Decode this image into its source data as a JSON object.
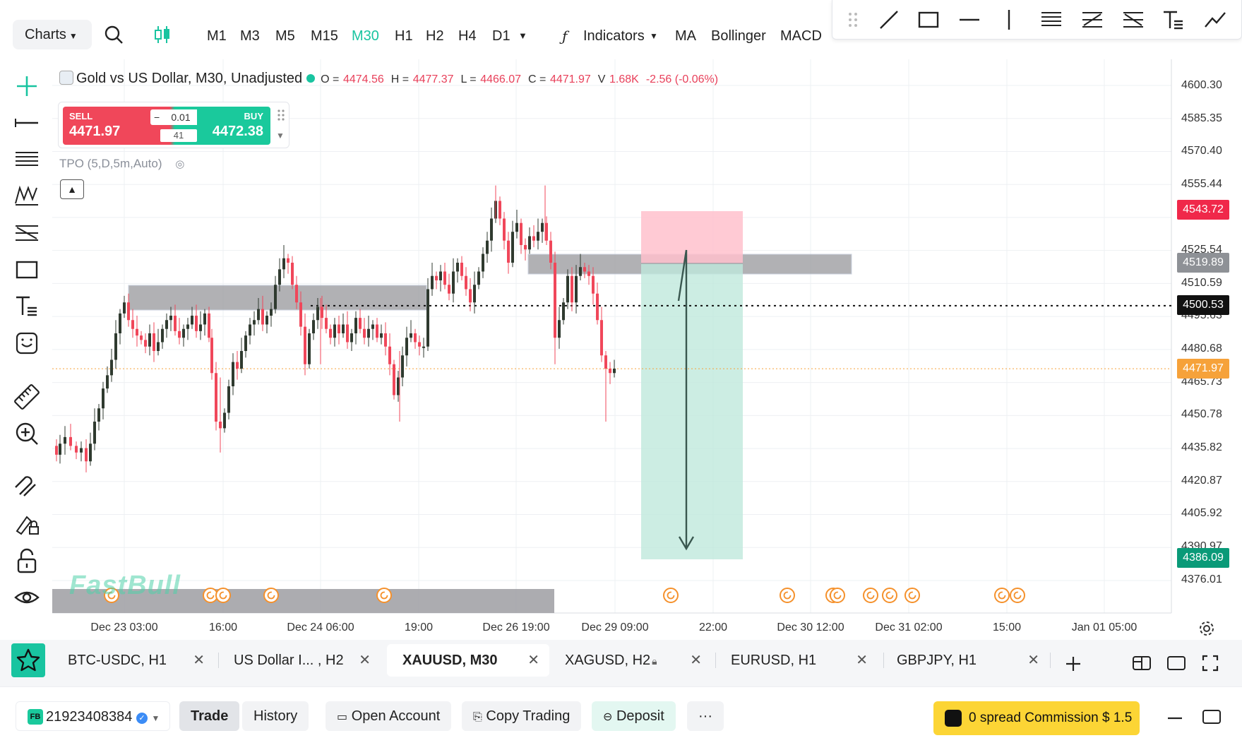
{
  "toolbar": {
    "charts_label": "Charts",
    "timeframes": [
      "M1",
      "M3",
      "M5",
      "M15",
      "M30",
      "H1",
      "H2",
      "H4",
      "D1"
    ],
    "active_timeframe": "M30",
    "indicators_label": "Indicators",
    "quick_indicators": [
      "MA",
      "Bollinger",
      "MACD"
    ]
  },
  "legend": {
    "symbol": "Gold vs US Dollar, M30, Unadjusted",
    "o_key": "O =",
    "o": "4474.56",
    "h_key": "H =",
    "h": "4477.37",
    "l_key": "L =",
    "l": "4466.07",
    "c_key": "C =",
    "c": "4471.97",
    "v_key": "V",
    "v": "1.68K",
    "change": "-2.56 (-0.06%)"
  },
  "trade": {
    "sell_label": "SELL",
    "sell_price": "4471.97",
    "buy_label": "BUY",
    "buy_price": "4472.38",
    "lot": "0.01",
    "spread": "41"
  },
  "indicator_label": "TPO (5,D,5m,Auto)",
  "watermark": "FastBull",
  "price_axis": {
    "ticks": [
      "4600.30",
      "4585.35",
      "4570.40",
      "4555.44",
      "4525.54",
      "4510.59",
      "4495.63",
      "4480.68",
      "4465.73",
      "4450.78",
      "4435.82",
      "4420.87",
      "4405.92",
      "4390.97",
      "4376.01"
    ],
    "tag_stop": "4543.72",
    "tag_zone": "4519.89",
    "tag_line": "4500.53",
    "tag_last": "4471.97",
    "tag_target": "4386.09"
  },
  "time_axis": [
    "Dec 23 03:00",
    "16:00",
    "Dec 24 06:00",
    "19:00",
    "Dec 26 19:00",
    "Dec 29 09:00",
    "22:00",
    "Dec 30 12:00",
    "Dec 31 02:00",
    "15:00",
    "Jan 01 05:00"
  ],
  "tabs": [
    {
      "label": "BTC-USDC, H1"
    },
    {
      "label": "US Dollar I... , H2"
    },
    {
      "label": "XAUUSD, M30"
    },
    {
      "label": "XAGUSD, H2"
    },
    {
      "label": "EURUSD, H1"
    },
    {
      "label": "GBPJPY, H1"
    }
  ],
  "active_tab": "XAUUSD, M30",
  "bottom": {
    "badge": "FB",
    "account": "21923408384",
    "trade": "Trade",
    "history": "History",
    "open_account": "Open Account",
    "copy_trading": "Copy Trading",
    "deposit": "Deposit",
    "more": "···",
    "promo": "0 spread Commission $ 1.5"
  },
  "colors": {
    "accent": "#19c4a0",
    "up": "#1ac99c",
    "down": "#f0475a",
    "candle": "#2f3a2f",
    "zone": "#9e9ea2",
    "stop_zone": "#ffc1cc",
    "target_zone": "#bfe9dc",
    "event_marker": "#f5912c"
  }
}
